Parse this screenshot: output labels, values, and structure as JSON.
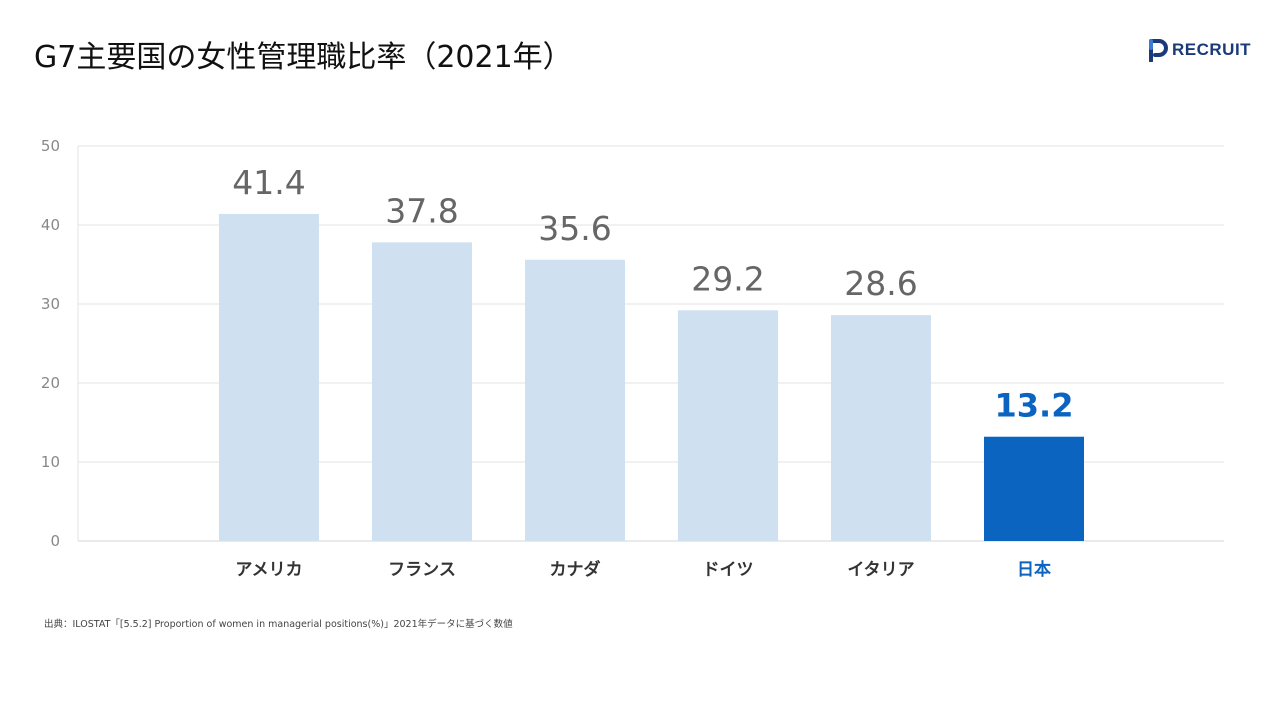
{
  "header": {
    "title": "G7主要国の女性管理職比率（2021年）",
    "logo_text": "RECRUIT"
  },
  "source_note": "出典：ILOSTAT「[5.5.2] Proportion of women in managerial positions(%)」2021年データに基づく数値",
  "colors": {
    "bar_default": "#cfe0f1",
    "bar_highlight": "#0a64c0",
    "value_label_default": "#666666",
    "value_label_highlight": "#0a64c0",
    "category_default": "#333333",
    "category_highlight": "#0a64c0",
    "grid": "#e3e3e3",
    "logo": "#1a3a7a"
  },
  "chart_data": {
    "type": "bar",
    "title": "G7主要国の女性管理職比率（2021年）",
    "xlabel": "",
    "ylabel": "",
    "categories": [
      "アメリカ",
      "フランス",
      "カナダ",
      "ドイツ",
      "イタリア",
      "日本"
    ],
    "values": [
      41.4,
      37.8,
      35.6,
      29.2,
      28.6,
      13.2
    ],
    "value_labels": [
      "41.4",
      "37.8",
      "35.6",
      "29.2",
      "28.6",
      "13.2"
    ],
    "highlight_category": "日本",
    "ylim": [
      0,
      50
    ],
    "yticks": [
      0,
      10,
      20,
      30,
      40,
      50
    ],
    "ytick_labels": [
      "0",
      "10",
      "20",
      "30",
      "40",
      "50"
    ],
    "grid": true,
    "legend": "none"
  }
}
